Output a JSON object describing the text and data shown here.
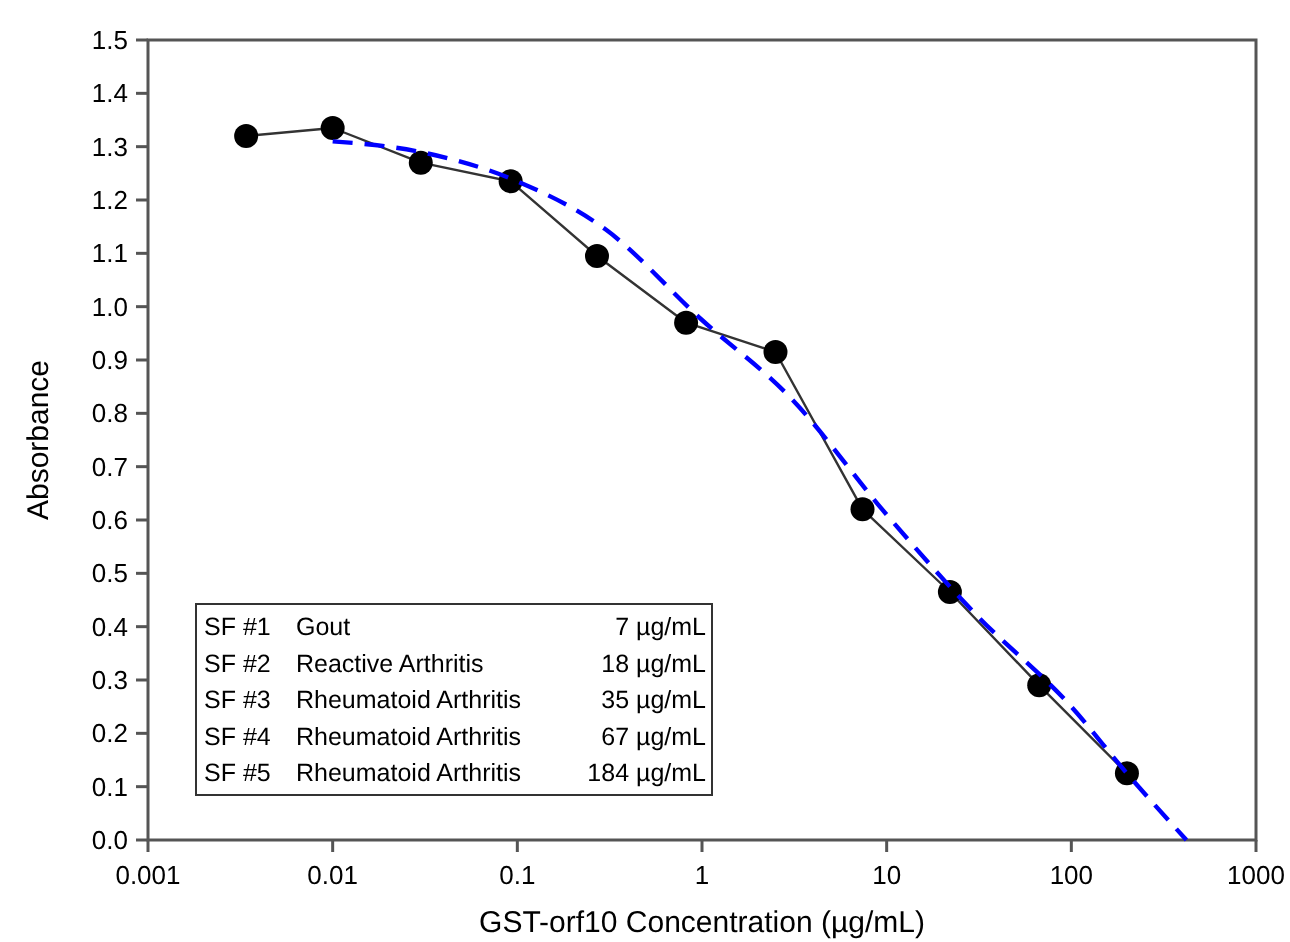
{
  "chart_data": {
    "type": "line",
    "xlabel": "GST-orf10 Concentration (µg/mL)",
    "ylabel": "Absorbance",
    "log": "x",
    "xlim": [
      0.001,
      1000
    ],
    "xticks": [
      0.001,
      0.01,
      0.1,
      1,
      10,
      100,
      1000
    ],
    "ylim": [
      0,
      1.5
    ],
    "yticks": [
      {
        "value": 0,
        "label": "0.0"
      },
      {
        "value": 0.1,
        "label": "0.1"
      },
      {
        "value": 0.2,
        "label": "0.2"
      },
      {
        "value": 0.3,
        "label": "0.3"
      },
      {
        "value": 0.4,
        "label": "0.4"
      },
      {
        "value": 0.5,
        "label": "0.5"
      },
      {
        "value": 0.6,
        "label": "0.6"
      },
      {
        "value": 0.7,
        "label": "0.7"
      },
      {
        "value": 0.8,
        "label": "0.8"
      },
      {
        "value": 0.9,
        "label": "0.9"
      },
      {
        "value": 1,
        "label": "1.0"
      },
      {
        "value": 1.1,
        "label": "1.1"
      },
      {
        "value": 1.2,
        "label": "1.2"
      },
      {
        "value": 1.3,
        "label": "1.3"
      },
      {
        "value": 1.4,
        "label": "1.4"
      },
      {
        "value": 1.5,
        "label": "1.5"
      }
    ],
    "grid": false,
    "series": [
      {
        "color": "#000000",
        "marker": "circle",
        "line_style": "solid",
        "x": [
          0.0034,
          0.01,
          0.03,
          0.092,
          0.27,
          0.82,
          2.5,
          7.4,
          22,
          67,
          200
        ],
        "values": [
          1.32,
          1.335,
          1.27,
          1.235,
          1.095,
          0.97,
          0.915,
          0.62,
          0.465,
          0.29,
          0.125
        ]
      },
      {
        "color": "#0000ff",
        "marker": "none",
        "line_style": "dashed",
        "x": [
          0.01,
          0.03,
          0.1,
          0.3,
          1,
          3,
          10,
          30,
          100,
          200,
          420
        ],
        "values": [
          1.31,
          1.29,
          1.235,
          1.145,
          0.975,
          0.83,
          0.61,
          0.425,
          0.25,
          0.125,
          0
        ]
      }
    ],
    "annotations": [
      "SF #1\tGout\t7 µg/mL",
      "SF #2\tReactive Arthritis\t18 µg/mL",
      "SF #3\tRheumatoid Arthritis\t35 µg/mL",
      "SF #4\tRheumatoid Arthritis\t67 µg/mL",
      "SF #5\tRheumatoid Arthritis\t184 µg/mL"
    ]
  }
}
